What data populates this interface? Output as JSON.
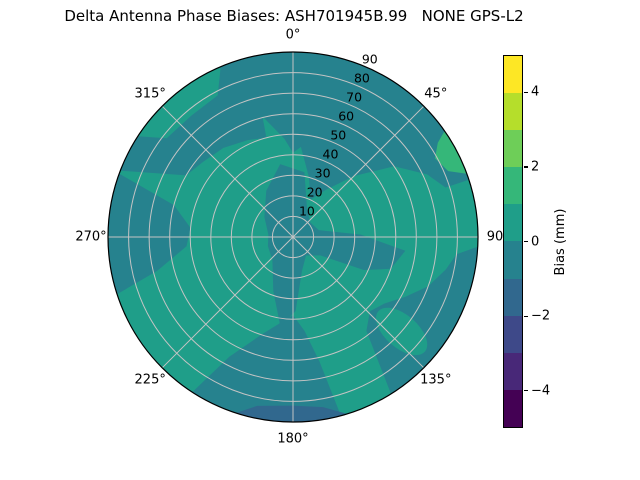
{
  "figure": {
    "background": "#ffffff"
  },
  "chart_data": {
    "type": "heatmap",
    "subtype": "polar-filled-contour-skyplot",
    "title": "Delta Antenna Phase Biases: ASH701945B.99   NONE GPS-L2",
    "antenna": "ASH701945B.99",
    "dome": "NONE",
    "signal": "GPS-L2",
    "theta_ticks": [
      {
        "label": "0°",
        "angle_deg": 0
      },
      {
        "label": "45°",
        "angle_deg": 45
      },
      {
        "label": "90",
        "angle_deg": 90
      },
      {
        "label": "135°",
        "angle_deg": 135
      },
      {
        "label": "180°",
        "angle_deg": 180
      },
      {
        "label": "225°",
        "angle_deg": 225
      },
      {
        "label": "270°",
        "angle_deg": 270
      },
      {
        "label": "315°",
        "angle_deg": 315
      }
    ],
    "theta_spokes_deg": [
      0,
      45,
      90,
      135,
      180,
      225,
      270,
      315
    ],
    "r_ticks": [
      10,
      20,
      30,
      40,
      50,
      60,
      70,
      80,
      90
    ],
    "r_range": [
      0,
      90
    ],
    "r_label_angle_deg": 22.5,
    "grid": true,
    "grid_color": "#c4c4c4",
    "outline_color": "#000000",
    "fill_colors": {
      "bias_0_to_1": "#1f9e89",
      "bias_minus1_to_0": "#26828e",
      "bias_1_to_2": "#35b779",
      "bias_minus2_to_minus1": "#31688e"
    },
    "regions": [
      {
        "bias_band_mm": "0 to 1",
        "color": "#1f9e89",
        "description": "dominant background over most of the sky plot, including bottom-left quadrant, mid radii along 45° and the rim patch near 303°-337°"
      },
      {
        "bias_band_mm": "-1 to 0",
        "color": "#26828e",
        "description": "large patch covering top/top-right from radius ~20 outward to the rim between ~337° and ~72°, a band across the northwest (291°-347°, r 48-90), a west rim patch (252°-290°, r 50-90), an irregular central blob with an arm toward ~100°, a south lobe (165°-213°, r 38-90) and a southeast rim sector (93°-148°, r 55-90)"
      },
      {
        "bias_band_mm": "1 to 2",
        "color": "#35b779",
        "description": "small bright-green sliver at the outer rim near 55°-70°"
      },
      {
        "bias_band_mm": "-2 to -1",
        "color": "#31688e",
        "description": "thin dark-blue sliver along the bottom rim near 163°-198°"
      }
    ],
    "colorbar": {
      "label": "Bias (mm)",
      "range": [
        -5,
        5
      ],
      "tick_values": [
        4,
        2,
        0,
        -2,
        -4
      ],
      "tick_labels": [
        "4",
        "2",
        "0",
        "−2",
        "−4"
      ],
      "band_colors_top_to_bottom": [
        "#fde725",
        "#b5de2b",
        "#6ece58",
        "#35b779",
        "#1f9e89",
        "#26828e",
        "#31688e",
        "#3e4989",
        "#482878",
        "#440154"
      ]
    }
  }
}
